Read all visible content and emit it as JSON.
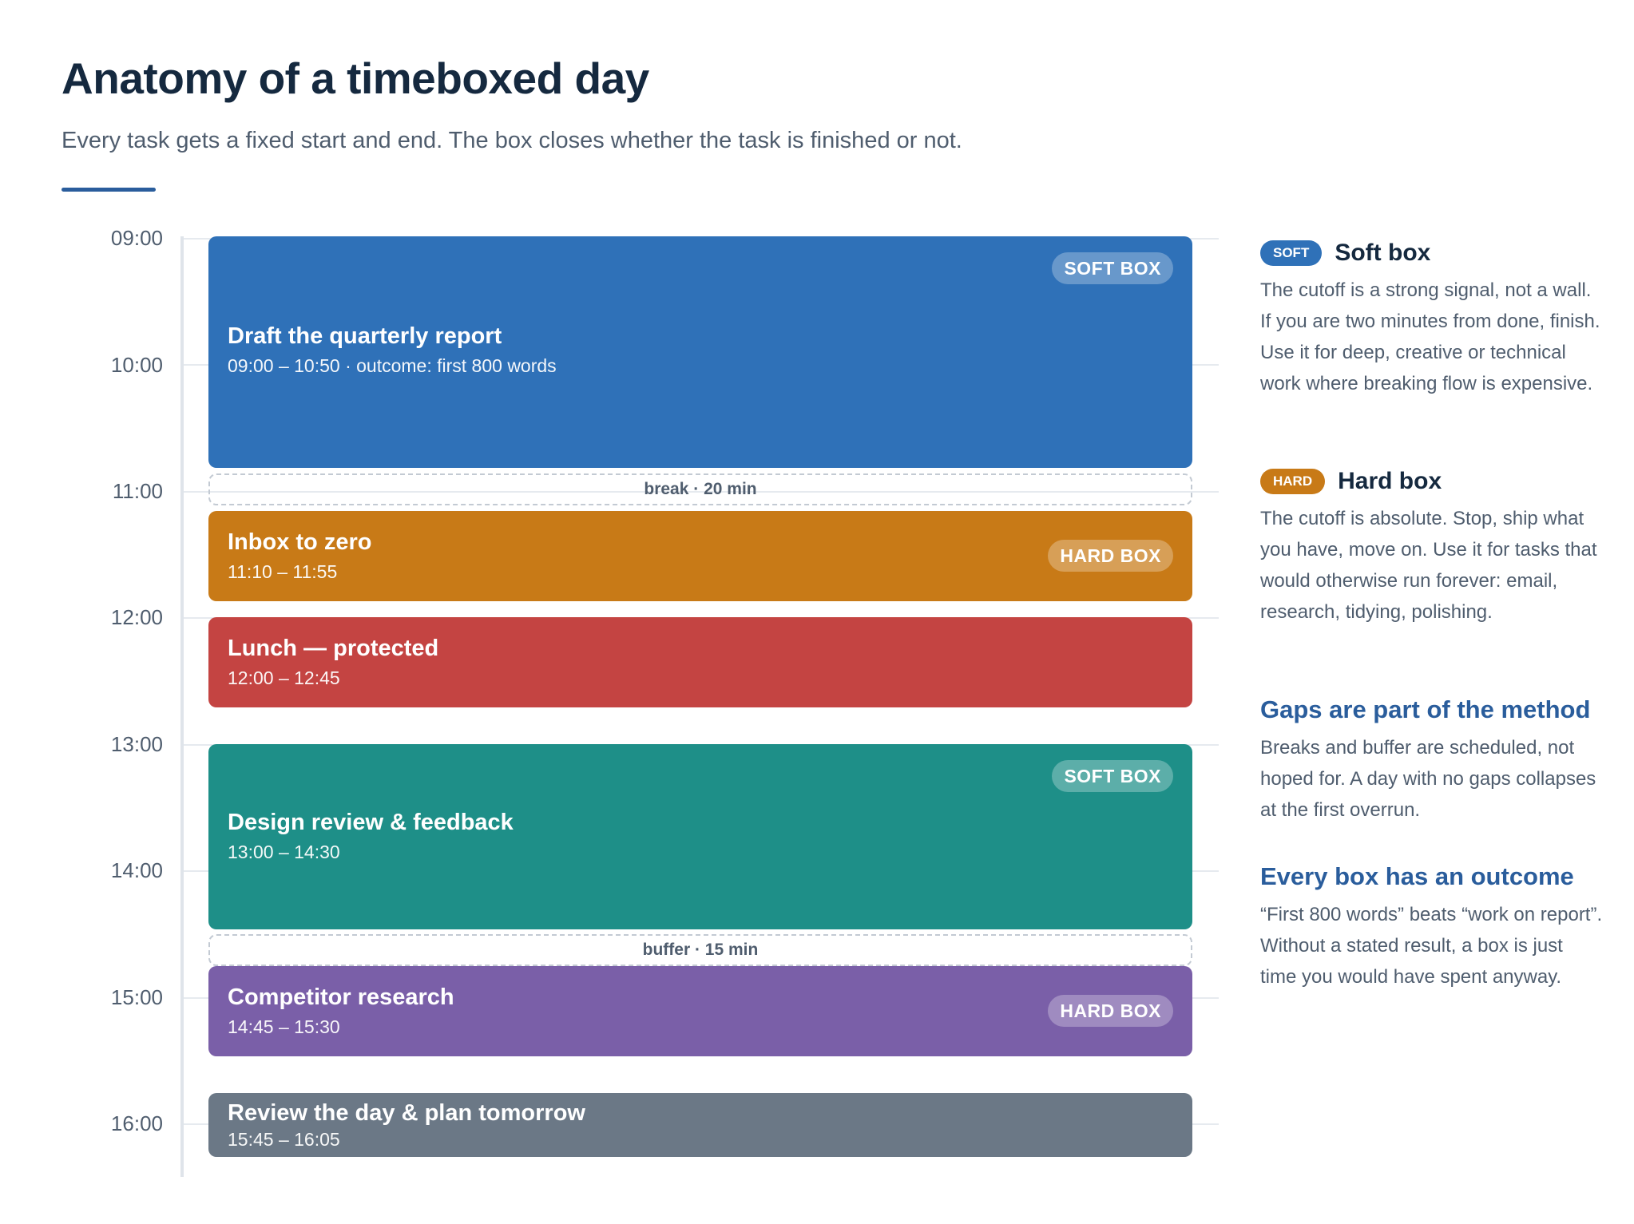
{
  "header": {
    "title": "Anatomy of a timeboxed day",
    "subtitle": "Every task gets a fixed start and end. The box closes whether the task is finished or not."
  },
  "timeline": {
    "hours": [
      "09:00",
      "10:00",
      "11:00",
      "12:00",
      "13:00",
      "14:00",
      "15:00",
      "16:00"
    ],
    "blocks": [
      {
        "title": "Draft the quarterly report",
        "time": "09:00 – 10:50 · outcome: first 800 words",
        "tag": "SOFT BOX",
        "color": "#2f71b8"
      },
      {
        "title": "Inbox to zero",
        "time": "11:10 – 11:55",
        "tag": "HARD BOX",
        "color": "#c87a17"
      },
      {
        "title": "Lunch — protected",
        "time": "12:00 – 12:45",
        "tag": "",
        "color": "#c44442"
      },
      {
        "title": "Design review & feedback",
        "time": "13:00 – 14:30",
        "tag": "SOFT BOX",
        "color": "#1e8f88"
      },
      {
        "title": "Competitor research",
        "time": "14:45 – 15:30",
        "tag": "HARD BOX",
        "color": "#7a5fa8"
      },
      {
        "title": "Review the day & plan tomorrow",
        "time": "15:45 – 16:05",
        "tag": "",
        "color": "#6b7886"
      }
    ],
    "gaps": [
      {
        "label": "break · 20 min"
      },
      {
        "label": "buffer · 15 min"
      }
    ]
  },
  "legend": {
    "soft": {
      "pill": "SOFT",
      "title": "Soft box",
      "color": "#2f71b8",
      "body": "The cutoff is a strong signal, not a wall. If you are two minutes from done, finish. Use it for deep, creative or technical work where breaking flow is expensive."
    },
    "hard": {
      "pill": "HARD",
      "title": "Hard box",
      "color": "#c87a17",
      "body": "The cutoff is absolute. Stop, ship what you have, move on. Use it for tasks that would otherwise run forever: email, research, tidying, polishing."
    },
    "gaps": {
      "title": "Gaps are part of the method",
      "body": "Breaks and buffer are scheduled, not hoped for. A day with no gaps collapses at the first overrun."
    },
    "outcome": {
      "title": "Every box has an outcome",
      "body": "“First 800 words” beats “work on report”. Without a stated result, a box is just time you would have spent anyway."
    }
  }
}
